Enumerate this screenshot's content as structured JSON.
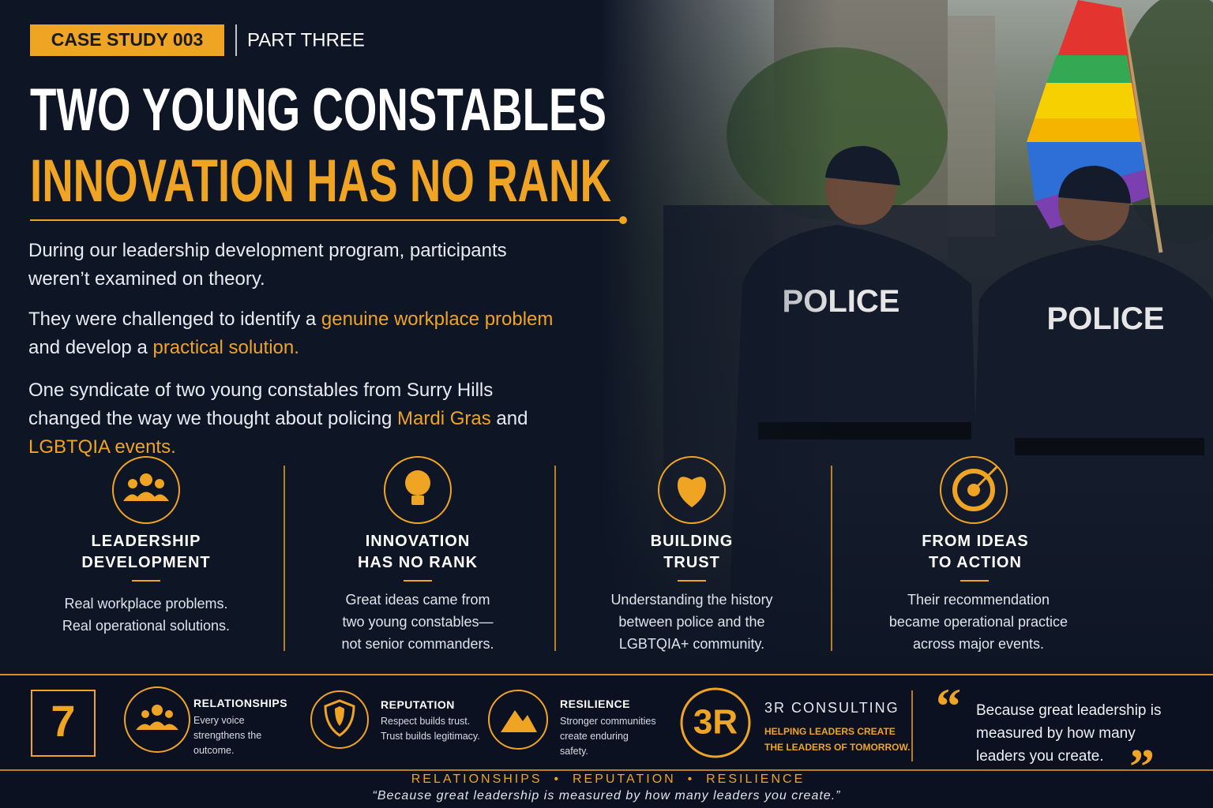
{
  "header": {
    "badge": "CASE STUDY 003",
    "part": "PART THREE",
    "title": "TWO YOUNG CONSTABLES",
    "subtitle": "INNOVATION HAS NO RANK"
  },
  "intro": [
    [
      {
        "text": "During our leadership development program, participants weren’t examined on theory.",
        "highlight": false
      }
    ],
    [
      {
        "text": "They were challenged to identify a ",
        "highlight": false
      },
      {
        "text": "genuine workplace problem",
        "highlight": true
      },
      {
        "text": " and develop a ",
        "highlight": false
      },
      {
        "text": "practical solution.",
        "highlight": true
      }
    ],
    [
      {
        "text": "One syndicate of two young constables from Surry Hills changed the way we thought about policing ",
        "highlight": false
      },
      {
        "text": "Mardi Gras",
        "highlight": true
      },
      {
        "text": " and ",
        "highlight": false
      },
      {
        "text": "LGBTQIA events.",
        "highlight": true
      }
    ]
  ],
  "photo": {
    "labels": [
      "POLICE",
      "POLICE"
    ]
  },
  "features": [
    {
      "title": [
        "LEADERSHIP",
        "DEVELOPMENT"
      ],
      "text": [
        "Real workplace problems.",
        "Real operational solutions."
      ]
    },
    {
      "title": [
        "INNOVATION",
        "HAS NO RANK"
      ],
      "text": [
        "Great ideas came from",
        "two young constables—",
        "not senior commanders."
      ]
    },
    {
      "title": [
        "BUILDING",
        "TRUST"
      ],
      "text": [
        "Understanding the history",
        "between police and the",
        "LGBTQIA+ community."
      ]
    },
    {
      "title": [
        "FROM IDEAS",
        "TO ACTION"
      ],
      "text": [
        "Their recommendation",
        "became operational practice",
        "across major events."
      ]
    }
  ],
  "footer": {
    "number": "7",
    "pillars": [
      {
        "title": "RELATIONSHIPS",
        "text": [
          "Every voice",
          "strengthens the",
          "outcome."
        ]
      },
      {
        "title": "REPUTATION",
        "text": [
          "Respect builds trust.",
          "Trust builds legitimacy."
        ]
      },
      {
        "title": "RESILIENCE",
        "text": [
          "Stronger communities",
          "create enduring",
          "safety."
        ]
      }
    ],
    "logo": "3R",
    "brand": "3R CONSULTING",
    "tagline": [
      "HELPING LEADERS CREATE",
      "THE LEADERS OF TOMORROW."
    ],
    "quote_open": "“",
    "quote": [
      "Because great leadership is",
      "measured by how many",
      "leaders you create."
    ],
    "quote_close": "”"
  },
  "strip": {
    "values": "RELATIONSHIPS  •  REPUTATION  •  RESILIENCE",
    "quote": "“Because great leadership is measured by how many leaders you create.”"
  }
}
